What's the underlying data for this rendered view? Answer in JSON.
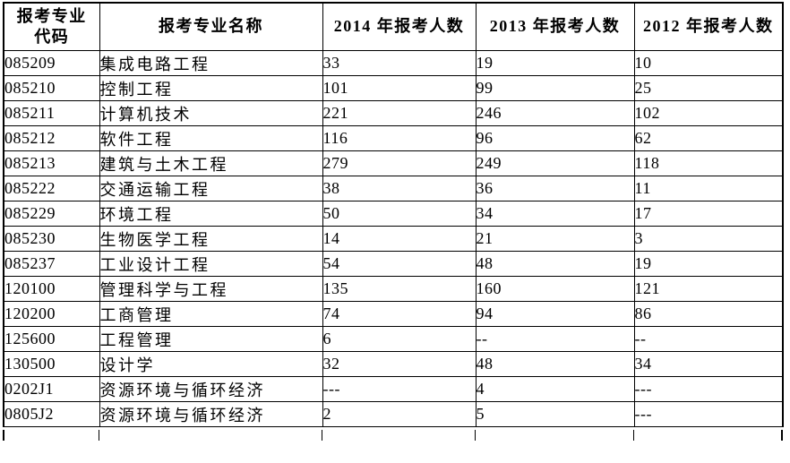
{
  "colors": {
    "border": "#000000",
    "text": "#000000",
    "background": "#ffffff"
  },
  "table": {
    "columns": [
      "报考专业\n代码",
      "报考专业名称",
      "2014 年报考人数",
      "2013 年报考人数",
      "2012 年报考人数"
    ],
    "rows": [
      [
        "085209",
        "集成电路工程",
        "33",
        "19",
        "10"
      ],
      [
        "085210",
        "控制工程",
        "101",
        "99",
        "25"
      ],
      [
        "085211",
        "计算机技术",
        "221",
        "246",
        "102"
      ],
      [
        "085212",
        "软件工程",
        "116",
        "96",
        "62"
      ],
      [
        "085213",
        "建筑与土木工程",
        "279",
        "249",
        "118"
      ],
      [
        "085222",
        "交通运输工程",
        "38",
        "36",
        "11"
      ],
      [
        "085229",
        "环境工程",
        "50",
        "34",
        "17"
      ],
      [
        "085230",
        "生物医学工程",
        "14",
        "21",
        "3"
      ],
      [
        "085237",
        "工业设计工程",
        "54",
        "48",
        "19"
      ],
      [
        "120100",
        "管理科学与工程",
        "135",
        "160",
        "121"
      ],
      [
        "120200",
        "工商管理",
        "74",
        "94",
        "86"
      ],
      [
        "125600",
        "工程管理",
        "6",
        "--",
        "--"
      ],
      [
        "130500",
        "设计学",
        "32",
        "48",
        "34"
      ],
      [
        "0202J1",
        "资源环境与循环经济",
        "---",
        "4",
        "---"
      ],
      [
        "0805J2",
        "资源环境与循环经济",
        "2",
        "5",
        "---"
      ]
    ]
  }
}
